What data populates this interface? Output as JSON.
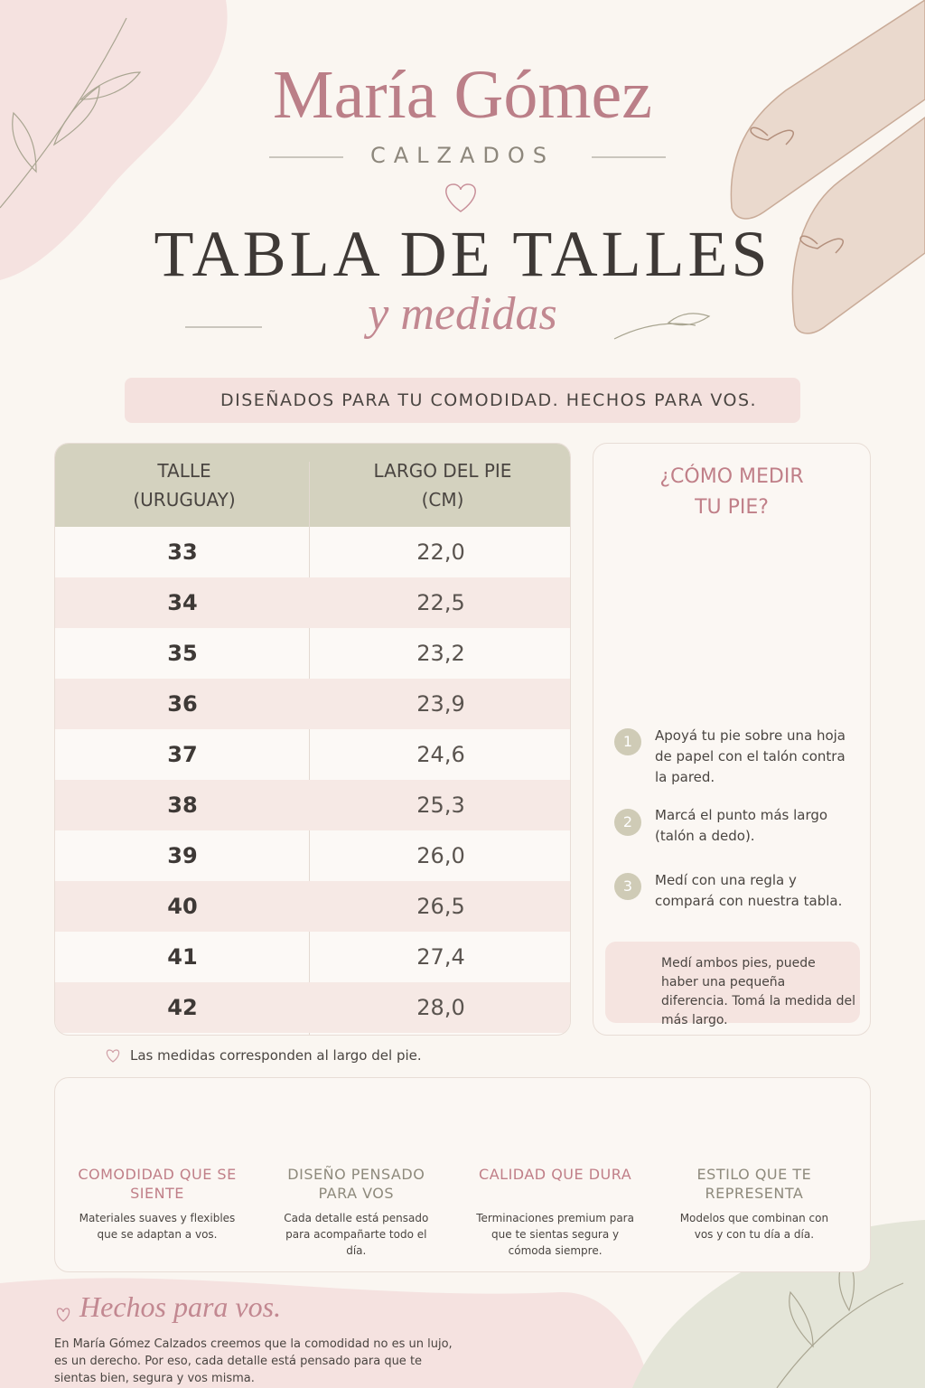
{
  "header": {
    "brand": "María Gómez",
    "subbrand": "CALZADOS",
    "title": "TABLA DE TALLES",
    "script": "y medidas",
    "tagline": "DISEÑADOS PARA TU COMODIDAD. HECHOS PARA VOS."
  },
  "table": {
    "columns": [
      [
        "TALLE",
        "(URUGUAY)"
      ],
      [
        "LARGO DEL PIE",
        "(CM)"
      ]
    ],
    "rows": [
      [
        "33",
        "22,0"
      ],
      [
        "34",
        "22,5"
      ],
      [
        "35",
        "23,2"
      ],
      [
        "36",
        "23,9"
      ],
      [
        "37",
        "24,6"
      ],
      [
        "38",
        "25,3"
      ],
      [
        "39",
        "26,0"
      ],
      [
        "40",
        "26,5"
      ],
      [
        "41",
        "27,4"
      ],
      [
        "42",
        "28,0"
      ]
    ],
    "note": "Las medidas corresponden al largo del pie."
  },
  "guide": {
    "title": [
      "¿CÓMO MEDIR",
      "TU PIE?"
    ],
    "steps": [
      {
        "number": "1",
        "text": "Apoyá tu pie sobre una hoja de papel con el talón contra la pared."
      },
      {
        "number": "2",
        "text": "Marcá el punto más largo (talón a dedo)."
      },
      {
        "number": "3",
        "text": "Medí con una regla y compará con nuestra tabla."
      }
    ],
    "tip": "Medí ambos pies, puede haber una pequeña diferencia. Tomá la medida del más largo."
  },
  "features": [
    {
      "title": "COMODIDAD QUE SE SIENTE",
      "text": "Materiales suaves y flexibles que se adaptan a vos."
    },
    {
      "title": "DISEÑO PENSADO PARA VOS",
      "text": "Cada detalle está pensado para acompañarte todo el día."
    },
    {
      "title": "CALIDAD QUE DURA",
      "text": "Terminaciones premium para que te sientas segura y cómoda siempre."
    },
    {
      "title": "ESTILO QUE TE REPRESENTA",
      "text": "Modelos que combinan con vos y con tu día a día."
    }
  ],
  "footer": {
    "script": "Hechos para vos.",
    "text": "En María Gómez Calzados creemos que la comodidad no es un lujo, es un derecho. Por eso, cada detalle está pensado para que te sientas bien, segura y vos misma."
  }
}
